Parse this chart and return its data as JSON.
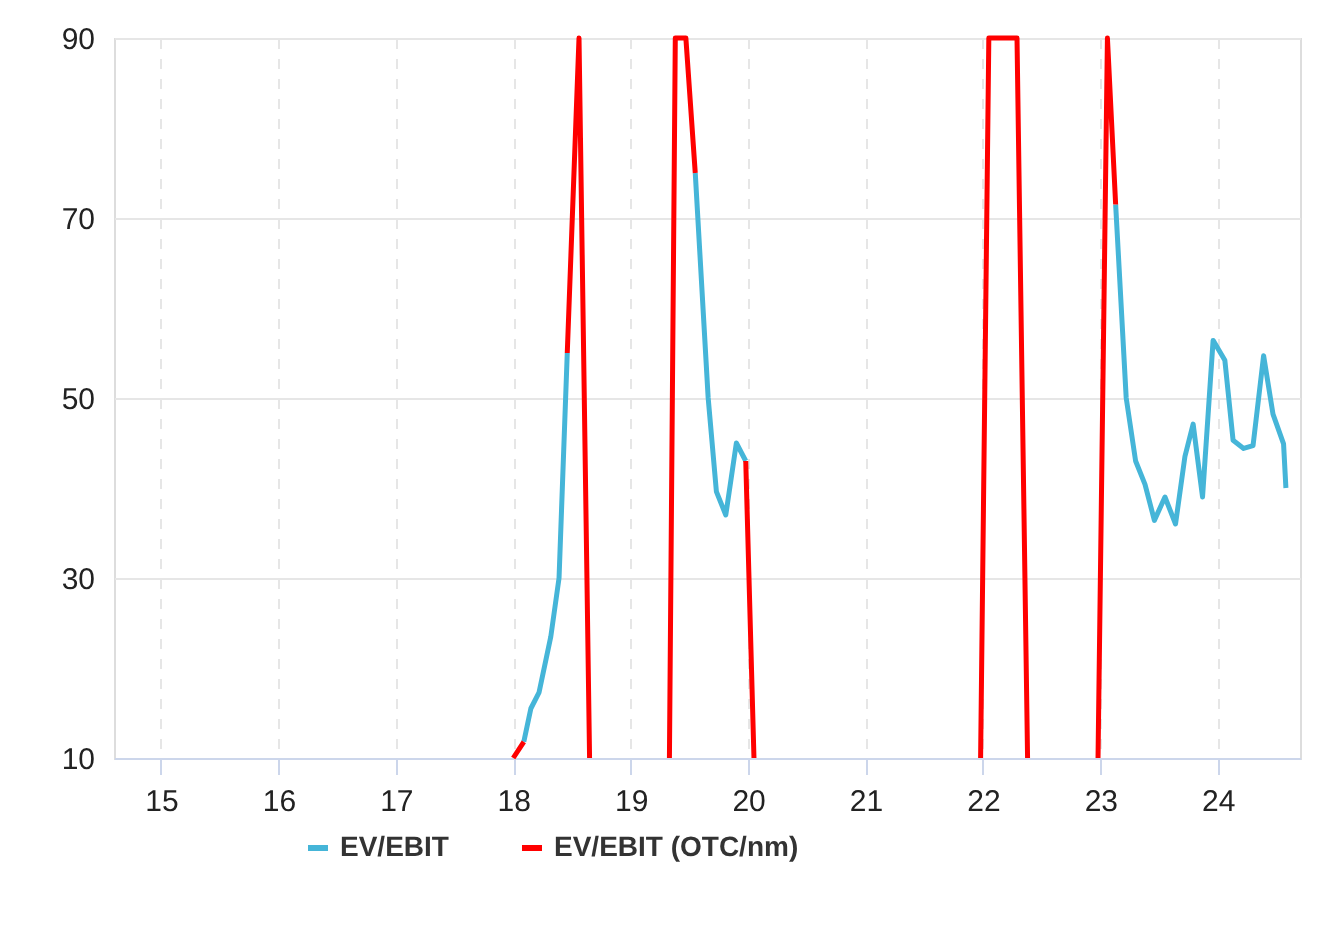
{
  "chart_data": {
    "type": "line",
    "xlim": [
      14.6,
      24.7
    ],
    "xticks": [
      15,
      16,
      17,
      18,
      19,
      20,
      21,
      22,
      23,
      24
    ],
    "ylim": [
      10,
      90
    ],
    "yticks": [
      10,
      30,
      50,
      70,
      90
    ],
    "grid": true,
    "legend": "bottom",
    "marker": "none",
    "line_style": "solid",
    "series": [
      {
        "name": "EV/EBIT",
        "color": "#45b5d8",
        "x": [
          18.09,
          18.15,
          18.22,
          18.32,
          18.39,
          18.46,
          19.0,
          19.55,
          19.66,
          19.73,
          19.81,
          19.9,
          19.98,
          21.5,
          23.13,
          23.22,
          23.3,
          23.38,
          23.46,
          23.55,
          23.64,
          23.72,
          23.79,
          23.87,
          23.96,
          24.06,
          24.13,
          24.22,
          24.3,
          24.39,
          24.47,
          24.56,
          24.58
        ],
        "values": [
          11.8,
          15.5,
          17.3,
          23.5,
          30,
          55,
          null,
          75,
          50,
          39.6,
          37,
          45,
          43,
          null,
          71.5,
          50,
          43,
          40.4,
          36.4,
          39,
          36,
          43.5,
          47.1,
          39,
          56.4,
          54.2,
          45.3,
          44.4,
          44.7,
          54.7,
          48.2,
          44.9,
          40
        ]
      },
      {
        "name": "EV/EBIT (OTC/nm)",
        "color": "#ff0000",
        "x": [
          18.0,
          18.09,
          18.2,
          18.46,
          18.56,
          18.65,
          19.0,
          19.33,
          19.38,
          19.47,
          19.55,
          19.7,
          19.98,
          20.05,
          21.0,
          21.98,
          22.05,
          22.29,
          22.38,
          22.7,
          22.98,
          23.06,
          23.13
        ],
        "values": [
          10,
          11.8,
          null,
          55,
          90,
          10,
          null,
          10,
          90,
          90,
          75,
          null,
          43,
          10,
          null,
          10,
          90,
          90,
          10,
          null,
          10,
          90,
          71.5
        ]
      }
    ]
  }
}
